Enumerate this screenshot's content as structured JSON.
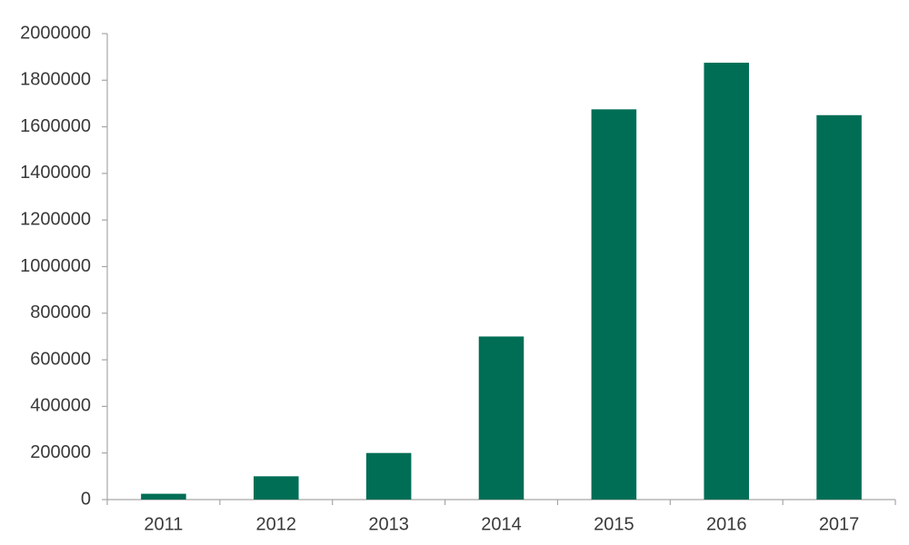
{
  "chart_data": {
    "type": "bar",
    "categories": [
      "2011",
      "2012",
      "2013",
      "2014",
      "2015",
      "2016",
      "2017"
    ],
    "values": [
      25000,
      100000,
      200000,
      700000,
      1675000,
      1875000,
      1650000
    ],
    "color": "#006e55",
    "ylim": [
      0,
      2000000
    ],
    "yticks": [
      0,
      200000,
      400000,
      600000,
      800000,
      1000000,
      1200000,
      1400000,
      1600000,
      1800000,
      2000000
    ],
    "grid": false
  }
}
